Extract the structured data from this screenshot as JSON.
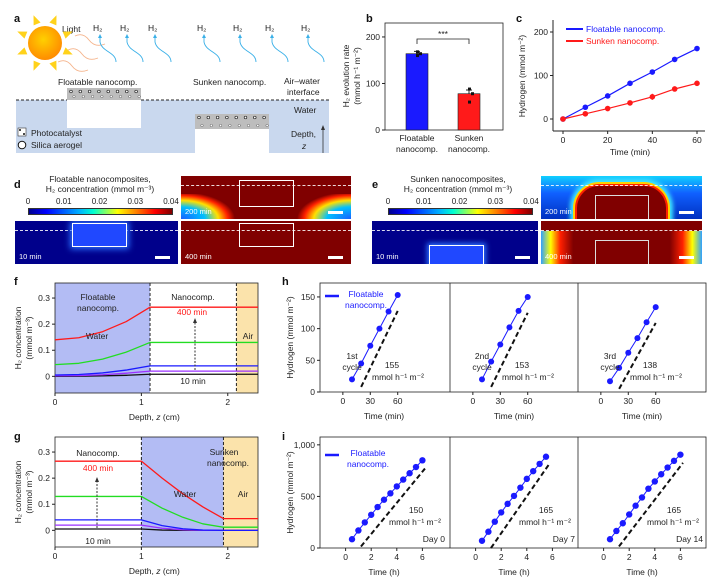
{
  "colors": {
    "blue": "#1a1aff",
    "red": "#ff1a1a",
    "green": "#22dd22",
    "purple": "#9b30ff",
    "black": "#111111",
    "water": "#c9d8ee",
    "region_blue": "#b3bcf4",
    "air": "#fbe3ab",
    "sun": "#ffa000",
    "h2_arrow": "#3ab0e8"
  },
  "panel_a": {
    "label": "a",
    "light": "Light",
    "h2": "H₂",
    "floatable": "Floatable nanocomp.",
    "sunken": "Sunken nanocomp.",
    "interface_1": "Air–water",
    "interface_2": "interface",
    "water": "Water",
    "depth": "Depth,",
    "z": "z",
    "legend_photocatalyst": "Photocatalyst",
    "legend_aerogel": "Silica aerogel",
    "icons": [
      "sun-icon",
      "photocatalyst-icon",
      "silica-aerogel-icon"
    ]
  },
  "panel_d": {
    "label": "d",
    "title_1": "Floatable nanocomposites,",
    "title_2": "H₂ concentration (mmol m⁻³)",
    "colorbar_ticks": [
      "0",
      "0.01",
      "0.02",
      "0.03",
      "0.04"
    ],
    "maps": [
      "10 min",
      "200 min",
      "400 min"
    ]
  },
  "panel_e": {
    "label": "e",
    "title_1": "Sunken nanocomposites,",
    "title_2": "H₂ concentration (mmol m⁻³)",
    "colorbar_ticks": [
      "0",
      "0.01",
      "0.02",
      "0.03",
      "0.04"
    ],
    "maps": [
      "10 min",
      "200 min",
      "400 min"
    ]
  },
  "chart_data": [
    {
      "panel": "b",
      "type": "bar",
      "categories": [
        "Floatable\nnanocomp.",
        "Sunken\nnanocomp."
      ],
      "values": [
        164,
        78
      ],
      "errors": [
        5,
        8
      ],
      "points": [
        [
          160,
          164,
          168
        ],
        [
          60,
          78,
          88
        ]
      ],
      "colors": [
        "#1a1aff",
        "#ff1a1a"
      ],
      "ylabel_1": "H₂ evolution rate",
      "ylabel_2": "(mmol h⁻¹ m⁻²)",
      "yticks": [
        0,
        100,
        200
      ],
      "ylim": [
        0,
        230
      ],
      "significance": "***"
    },
    {
      "panel": "c",
      "type": "line",
      "xlabel": "Time (min)",
      "ylabel": "Hydrogen (mmol m⁻²)",
      "x": [
        0,
        10,
        20,
        30,
        40,
        50,
        60
      ],
      "xticks": [
        0,
        20,
        40,
        60
      ],
      "yticks": [
        0,
        100,
        200
      ],
      "xlim": [
        -8,
        65
      ],
      "ylim": [
        -10,
        225
      ],
      "legend": "top-left",
      "series": [
        {
          "name": "Floatable nanocomp.",
          "color": "#1a1aff",
          "values": [
            0,
            27,
            53,
            82,
            108,
            137,
            162
          ]
        },
        {
          "name": "Sunken nanocomp.",
          "color": "#ff1a1a",
          "values": [
            0,
            12,
            24,
            37,
            51,
            69,
            82
          ],
          "errors": [
            0,
            3,
            3,
            5,
            7,
            5,
            3
          ]
        }
      ]
    },
    {
      "panel": "f",
      "type": "line",
      "xlabel_1": "Depth, ",
      "xlabel_z": "z",
      "xlabel_2": " (cm)",
      "ylabel_1": "H₂ concentration",
      "ylabel_2": "(mmol m⁻³)",
      "xticks": [
        0,
        1,
        2
      ],
      "yticks": [
        "0",
        "0.1",
        "0.2",
        "0.3"
      ],
      "xlim": [
        0,
        2.35
      ],
      "ylim": [
        -0.06,
        0.35
      ],
      "regions": [
        {
          "from": 0,
          "to": 1.1,
          "color": "#b3bcf4"
        },
        {
          "from": 1.1,
          "to": 2.1,
          "color": "#ffffff"
        },
        {
          "from": 2.1,
          "to": 2.35,
          "color": "#fbe3ab"
        }
      ],
      "labels": {
        "floatable_1": "Floatable",
        "floatable_2": "nanocomp.",
        "water": "Water",
        "nanocomp": "Nanocomp.",
        "air": "Air",
        "t_max": "400 min",
        "t_min": "10 min"
      },
      "z": [
        0,
        0.275,
        0.55,
        0.825,
        1.1,
        2.35
      ],
      "series": [
        {
          "color": "#ff1a1a",
          "values": [
            0.14,
            0.148,
            0.171,
            0.21,
            0.265,
            0.265
          ]
        },
        {
          "color": "#22dd22",
          "values": [
            0.045,
            0.05,
            0.066,
            0.093,
            0.13,
            0.13
          ]
        },
        {
          "color": "#1a1aff",
          "values": [
            0.005,
            0.007,
            0.013,
            0.024,
            0.04,
            0.04
          ]
        },
        {
          "color": "#9b30ff",
          "values": [
            0.002,
            0.003,
            0.006,
            0.012,
            0.02,
            0.02
          ]
        },
        {
          "color": "#111111",
          "values": [
            0,
            0.0005,
            0.002,
            0.004,
            0.008,
            0.008
          ]
        }
      ]
    },
    {
      "panel": "g",
      "type": "line",
      "xlabel_1": "Depth, ",
      "xlabel_z": "z",
      "xlabel_2": " (cm)",
      "ylabel_1": "H₂ concentration",
      "ylabel_2": "(mmol m⁻³)",
      "xticks": [
        0,
        1,
        2
      ],
      "yticks": [
        "0",
        "0.1",
        "0.2",
        "0.3"
      ],
      "xlim": [
        0,
        2.35
      ],
      "ylim": [
        -0.06,
        0.35
      ],
      "regions": [
        {
          "from": 0,
          "to": 1,
          "color": "#ffffff"
        },
        {
          "from": 1,
          "to": 1.95,
          "color": "#b3bcf4"
        },
        {
          "from": 1.95,
          "to": 2.35,
          "color": "#fbe3ab"
        }
      ],
      "labels": {
        "nanocomp": "Nanocomp.",
        "water": "Water",
        "sunken_1": "Sunken",
        "sunken_2": "nanocomp.",
        "air": "Air",
        "t_max": "400 min",
        "t_min": "10 min"
      },
      "z": [
        0,
        1,
        1.24,
        1.48,
        1.71,
        1.95,
        2.35
      ],
      "series": [
        {
          "color": "#ff1a1a",
          "values": [
            0.265,
            0.265,
            0.2,
            0.14,
            0.09,
            0.045,
            0.045
          ]
        },
        {
          "color": "#22dd22",
          "values": [
            0.13,
            0.13,
            0.085,
            0.05,
            0.025,
            0.012,
            0.012
          ]
        },
        {
          "color": "#1a1aff",
          "values": [
            0.04,
            0.04,
            0.018,
            0.006,
            0.001,
            0,
            0
          ]
        },
        {
          "color": "#9b30ff",
          "values": [
            0.02,
            0.02,
            0.008,
            0.002,
            0,
            0,
            0
          ]
        },
        {
          "color": "#111111",
          "values": [
            0.005,
            0.005,
            0.001,
            0,
            0,
            0,
            0
          ]
        }
      ]
    },
    {
      "panel": "h",
      "type": "scatter",
      "xlabel": "Time (min)",
      "ylabel": "Hydrogen (mmol m⁻²)",
      "xticks": [
        0,
        30,
        60
      ],
      "yticks": [
        0,
        50,
        100,
        150
      ],
      "xlim": [
        -25,
        115
      ],
      "ylim": [
        0,
        172
      ],
      "legend": "Floatable nanocomp.",
      "unit": "mmol h⁻¹ m⁻²",
      "x": [
        10,
        20,
        30,
        40,
        50,
        60
      ],
      "panels": [
        {
          "cycle_1": "1st",
          "cycle_2": "cycle",
          "rate": "155",
          "values": [
            20,
            45,
            73,
            100,
            127,
            153
          ]
        },
        {
          "cycle_1": "2nd",
          "cycle_2": "cycle",
          "rate": "153",
          "values": [
            20,
            48,
            75,
            102,
            128,
            150
          ]
        },
        {
          "cycle_1": "3rd",
          "cycle_2": "cycle",
          "rate": "138",
          "values": [
            17,
            38,
            62,
            85,
            110,
            134
          ]
        }
      ]
    },
    {
      "panel": "i",
      "type": "scatter",
      "xlabel": "Time (h)",
      "ylabel": "Hydrogen (mmol m⁻²)",
      "xticks": [
        0,
        2,
        4,
        6
      ],
      "yticks": [
        0,
        500,
        1000
      ],
      "ytick_labels": [
        "0",
        "500",
        "1,000"
      ],
      "xlim": [
        -2,
        8
      ],
      "ylim": [
        0,
        1076
      ],
      "legend": "Floatable nanocomp.",
      "unit": "mmol h⁻¹ m⁻²",
      "panels": [
        {
          "day": "Day 0",
          "rate": "150",
          "x": [
            0.5,
            1,
            1.5,
            2,
            2.5,
            3,
            3.5,
            4,
            4.5,
            5,
            5.5,
            6
          ],
          "values": [
            85,
            170,
            248,
            322,
            397,
            468,
            530,
            597,
            663,
            725,
            785,
            850
          ]
        },
        {
          "day": "Day 7",
          "rate": "165",
          "x": [
            0.5,
            1,
            1.5,
            2,
            2.5,
            3,
            3.5,
            4,
            4.5,
            5,
            5.5
          ],
          "values": [
            70,
            158,
            255,
            345,
            428,
            505,
            585,
            670,
            745,
            815,
            885
          ]
        },
        {
          "day": "Day 14",
          "rate": "165",
          "x": [
            0.5,
            1,
            1.5,
            2,
            2.5,
            3,
            3.5,
            4,
            4.5,
            5,
            5.5,
            6
          ],
          "values": [
            85,
            165,
            240,
            325,
            410,
            490,
            575,
            645,
            715,
            780,
            845,
            905
          ]
        }
      ]
    }
  ]
}
